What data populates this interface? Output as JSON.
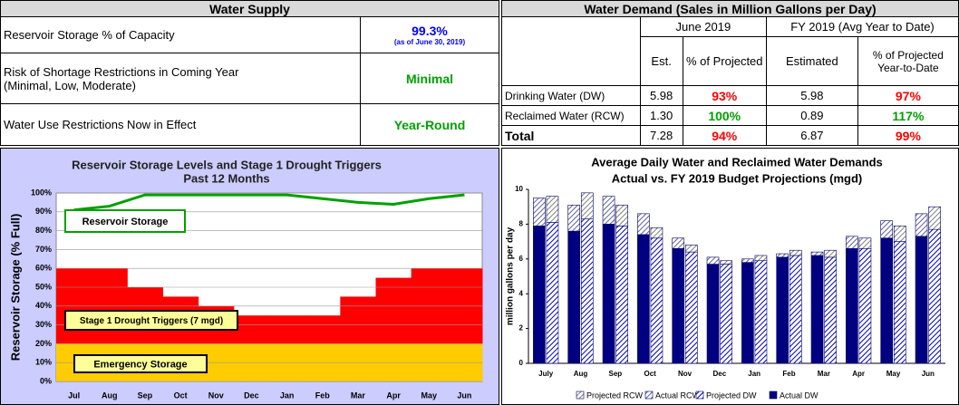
{
  "supply_table": {
    "title": "Water Supply",
    "rows": [
      {
        "label": [
          "Reservoir Storage % of Capacity"
        ],
        "value": "99.3%",
        "note": "(as of June 30, 2019)",
        "color": "#0000ff"
      },
      {
        "label": [
          "Risk of Shortage Restrictions in Coming Year",
          "(Minimal, Low, Moderate)"
        ],
        "value": "Minimal",
        "color": "#00a000"
      },
      {
        "label": [
          "Water Use Restrictions Now in Effect"
        ],
        "value": "Year-Round",
        "color": "#00a000"
      }
    ]
  },
  "demand_table": {
    "title": "Water Demand (Sales in Million Gallons per Day)",
    "groups": [
      "June 2019",
      "FY 2019 (Avg Year to Date)"
    ],
    "columns": [
      "Est.",
      "% of Projected",
      "Estimated",
      "% of Projected Year-to-Date"
    ],
    "rows": [
      {
        "label": "Drinking Water (DW)",
        "june_est": "5.98",
        "june_pct": "93%",
        "june_pct_color": "#ff0000",
        "fy_est": "5.98",
        "fy_pct": "97%",
        "fy_pct_color": "#ff0000"
      },
      {
        "label": "Reclaimed Water (RCW)",
        "june_est": "1.30",
        "june_pct": "100%",
        "june_pct_color": "#00a000",
        "fy_est": "0.89",
        "fy_pct": "117%",
        "fy_pct_color": "#00a000"
      },
      {
        "label": "Total",
        "june_est": "7.28",
        "june_pct": "94%",
        "june_pct_color": "#ff0000",
        "fy_est": "6.87",
        "fy_pct": "99%",
        "fy_pct_color": "#ff0000"
      }
    ]
  },
  "chart_data": [
    {
      "type": "area",
      "title": [
        "Reservoir Storage Levels and Stage 1 Drought Triggers",
        "Past 12 Months"
      ],
      "y_label": "Reservoir Storage (% Full)",
      "categories": [
        "Jul",
        "Aug",
        "Sep",
        "Oct",
        "Nov",
        "Dec",
        "Jan",
        "Feb",
        "Mar",
        "Apr",
        "May",
        "Jun"
      ],
      "series": [
        {
          "name": "Reservoir Storage",
          "color": "#00a000",
          "values": [
            91,
            93,
            99,
            99,
            99,
            99,
            99,
            97,
            95,
            94,
            97,
            99
          ]
        },
        {
          "name": "Stage 1 Drought Triggers (7 mgd)",
          "color": "#ff0000",
          "values": [
            60,
            60,
            50,
            45,
            40,
            35,
            35,
            35,
            45,
            55,
            60,
            60
          ]
        },
        {
          "name": "Emergency Storage",
          "color": "#ffcc00",
          "values": [
            20,
            20,
            20,
            20,
            20,
            20,
            20,
            20,
            20,
            20,
            20,
            20
          ]
        }
      ],
      "ylim": [
        0,
        100
      ],
      "yticks": [
        {
          "value": 0,
          "label": "0%"
        },
        {
          "value": 10,
          "label": "10%"
        },
        {
          "value": 20,
          "label": "20%"
        },
        {
          "value": 30,
          "label": "30%"
        },
        {
          "value": 40,
          "label": "40%"
        },
        {
          "value": 50,
          "label": "50%"
        },
        {
          "value": 60,
          "label": "60%"
        },
        {
          "value": 70,
          "label": "70%"
        },
        {
          "value": 80,
          "label": "80%"
        },
        {
          "value": 90,
          "label": "90%"
        },
        {
          "value": 100,
          "label": "100%"
        }
      ],
      "grid": true
    },
    {
      "type": "bar",
      "title": [
        "Average Daily Water and Reclaimed Water Demands",
        "Actual vs. FY 2019 Budget Projections (mgd)"
      ],
      "y_label": "million gallons per day",
      "categories": [
        "July",
        "Aug",
        "Sep",
        "Oct",
        "Nov",
        "Dec",
        "Jan",
        "Feb",
        "Mar",
        "Apr",
        "May",
        "Jun"
      ],
      "series": [
        {
          "name": "Projected RCW",
          "color": "#808080",
          "hatch": true,
          "values": [
            1.5,
            1.5,
            1.2,
            0.6,
            0.4,
            0.2,
            0.3,
            0.3,
            0.4,
            0.6,
            0.9,
            1.3
          ]
        },
        {
          "name": "Actual RCW",
          "color": "#6060a0",
          "hatch": true,
          "values": [
            1.6,
            1.5,
            1.6,
            1.2,
            0.6,
            0.4,
            0.2,
            0.2,
            0.2,
            0.7,
            1.0,
            1.3
          ]
        },
        {
          "name": "Projected DW",
          "color": "#0000c0",
          "hatch": true,
          "values": [
            8.1,
            8.3,
            7.9,
            7.2,
            6.4,
            5.7,
            5.9,
            6.2,
            6.1,
            6.6,
            7.0,
            7.7
          ]
        },
        {
          "name": "Actual DW",
          "color": "#000080",
          "hatch": false,
          "values": [
            7.9,
            7.6,
            8.0,
            7.4,
            6.6,
            5.7,
            5.8,
            6.1,
            6.2,
            6.6,
            7.2,
            7.3
          ]
        }
      ],
      "ylim": [
        0,
        10
      ],
      "yticks": [
        0,
        2,
        4,
        6,
        8,
        10
      ],
      "grid": false
    }
  ]
}
